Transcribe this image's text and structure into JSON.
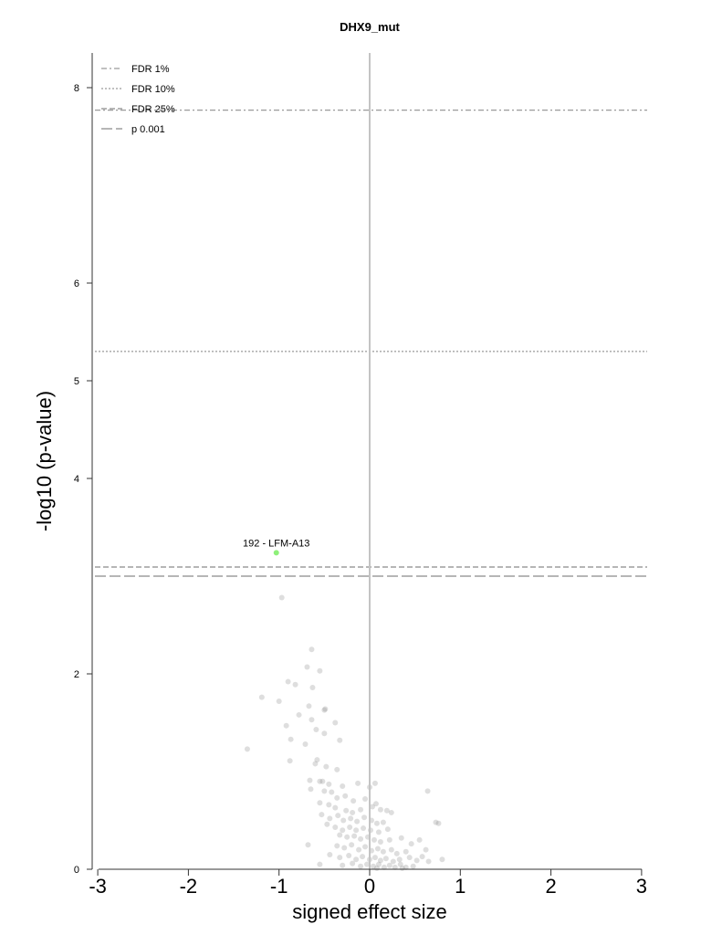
{
  "chart_data": {
    "type": "scatter",
    "title": "DHX9_mut",
    "xlabel": "signed effect size",
    "ylabel": "-log10 (p-value)",
    "xlim": [
      -3,
      3
    ],
    "ylim": [
      0,
      8.4
    ],
    "x_ticks": [
      "-3",
      "-2",
      "-1",
      "0",
      "1",
      "2",
      "3"
    ],
    "y_ticks": [
      "0",
      "2",
      "4",
      "5",
      "6",
      "8"
    ],
    "thresholds": [
      {
        "name": "FDR 1%",
        "y": 7.77,
        "style": "dash-dot"
      },
      {
        "name": "FDR 10%",
        "y": 5.3,
        "style": "dotted"
      },
      {
        "name": "FDR 25%",
        "y": 3.0,
        "style": "short-dash"
      },
      {
        "name": "p 0.001",
        "y": 3.0,
        "style": "long-dash"
      }
    ],
    "legend_position": "top-left",
    "highlight": {
      "label": "192 - LFM-A13",
      "x": -1.03,
      "y": 3.24,
      "color": "#8ef07a"
    },
    "points": [
      [
        -0.97,
        2.78
      ],
      [
        -0.64,
        2.25
      ],
      [
        -0.69,
        2.07
      ],
      [
        -0.55,
        2.03
      ],
      [
        -0.9,
        1.92
      ],
      [
        -0.82,
        1.89
      ],
      [
        -0.63,
        1.86
      ],
      [
        -1.19,
        1.76
      ],
      [
        -1.0,
        1.72
      ],
      [
        -0.67,
        1.67
      ],
      [
        -0.49,
        1.64
      ],
      [
        -0.5,
        1.63
      ],
      [
        -0.78,
        1.58
      ],
      [
        -0.64,
        1.53
      ],
      [
        -0.38,
        1.5
      ],
      [
        -0.92,
        1.47
      ],
      [
        -0.59,
        1.43
      ],
      [
        -0.5,
        1.39
      ],
      [
        -0.33,
        1.32
      ],
      [
        -0.87,
        1.33
      ],
      [
        -0.71,
        1.28
      ],
      [
        -1.35,
        1.23
      ],
      [
        -0.88,
        1.11
      ],
      [
        -0.58,
        1.12
      ],
      [
        -0.6,
        1.08
      ],
      [
        -0.48,
        1.05
      ],
      [
        -0.36,
        1.02
      ],
      [
        -0.66,
        0.91
      ],
      [
        -0.55,
        0.9
      ],
      [
        -0.52,
        0.9
      ],
      [
        -0.45,
        0.87
      ],
      [
        -0.3,
        0.85
      ],
      [
        -0.13,
        0.88
      ],
      [
        0.0,
        0.84
      ],
      [
        0.06,
        0.88
      ],
      [
        -0.65,
        0.82
      ],
      [
        -0.5,
        0.8
      ],
      [
        -0.42,
        0.79
      ],
      [
        -0.27,
        0.75
      ],
      [
        -0.36,
        0.73
      ],
      [
        -0.18,
        0.7
      ],
      [
        -0.05,
        0.72
      ],
      [
        0.64,
        0.8
      ],
      [
        -0.55,
        0.68
      ],
      [
        -0.45,
        0.66
      ],
      [
        -0.38,
        0.63
      ],
      [
        -0.26,
        0.6
      ],
      [
        -0.19,
        0.58
      ],
      [
        -0.1,
        0.61
      ],
      [
        0.03,
        0.64
      ],
      [
        0.07,
        0.67
      ],
      [
        0.12,
        0.61
      ],
      [
        0.19,
        0.6
      ],
      [
        0.24,
        0.58
      ],
      [
        -0.53,
        0.56
      ],
      [
        -0.44,
        0.52
      ],
      [
        -0.35,
        0.55
      ],
      [
        -0.29,
        0.5
      ],
      [
        -0.21,
        0.52
      ],
      [
        -0.14,
        0.49
      ],
      [
        -0.06,
        0.53
      ],
      [
        0.02,
        0.5
      ],
      [
        0.08,
        0.47
      ],
      [
        0.15,
        0.48
      ],
      [
        0.73,
        0.48
      ],
      [
        0.76,
        0.47
      ],
      [
        -0.47,
        0.46
      ],
      [
        -0.38,
        0.43
      ],
      [
        -0.3,
        0.4
      ],
      [
        -0.22,
        0.43
      ],
      [
        -0.15,
        0.4
      ],
      [
        -0.07,
        0.42
      ],
      [
        0.01,
        0.4
      ],
      [
        0.1,
        0.38
      ],
      [
        0.2,
        0.41
      ],
      [
        -0.33,
        0.35
      ],
      [
        -0.25,
        0.33
      ],
      [
        -0.17,
        0.34
      ],
      [
        -0.1,
        0.31
      ],
      [
        -0.02,
        0.33
      ],
      [
        0.05,
        0.3
      ],
      [
        0.12,
        0.28
      ],
      [
        0.22,
        0.3
      ],
      [
        0.35,
        0.32
      ],
      [
        0.46,
        0.26
      ],
      [
        0.55,
        0.3
      ],
      [
        -0.68,
        0.25
      ],
      [
        -0.36,
        0.24
      ],
      [
        -0.28,
        0.22
      ],
      [
        -0.2,
        0.25
      ],
      [
        -0.12,
        0.2
      ],
      [
        -0.05,
        0.23
      ],
      [
        0.02,
        0.19
      ],
      [
        0.09,
        0.21
      ],
      [
        0.15,
        0.18
      ],
      [
        0.24,
        0.2
      ],
      [
        0.3,
        0.16
      ],
      [
        0.4,
        0.18
      ],
      [
        0.62,
        0.2
      ],
      [
        -0.44,
        0.15
      ],
      [
        -0.33,
        0.12
      ],
      [
        -0.23,
        0.14
      ],
      [
        -0.15,
        0.1
      ],
      [
        -0.08,
        0.13
      ],
      [
        0.0,
        0.1
      ],
      [
        0.06,
        0.12
      ],
      [
        0.12,
        0.09
      ],
      [
        0.18,
        0.11
      ],
      [
        0.26,
        0.08
      ],
      [
        0.33,
        0.1
      ],
      [
        0.44,
        0.12
      ],
      [
        0.52,
        0.09
      ],
      [
        0.58,
        0.13
      ],
      [
        0.65,
        0.08
      ],
      [
        0.8,
        0.1
      ],
      [
        -0.55,
        0.05
      ],
      [
        -0.3,
        0.04
      ],
      [
        -0.19,
        0.06
      ],
      [
        -0.1,
        0.03
      ],
      [
        -0.03,
        0.05
      ],
      [
        0.04,
        0.03
      ],
      [
        0.1,
        0.05
      ],
      [
        0.16,
        0.02
      ],
      [
        0.22,
        0.04
      ],
      [
        0.28,
        0.02
      ],
      [
        0.34,
        0.05
      ],
      [
        0.4,
        0.02
      ],
      [
        0.48,
        0.03
      ],
      [
        0.36,
        0.01
      ],
      [
        0.08,
        0.01
      ]
    ]
  }
}
